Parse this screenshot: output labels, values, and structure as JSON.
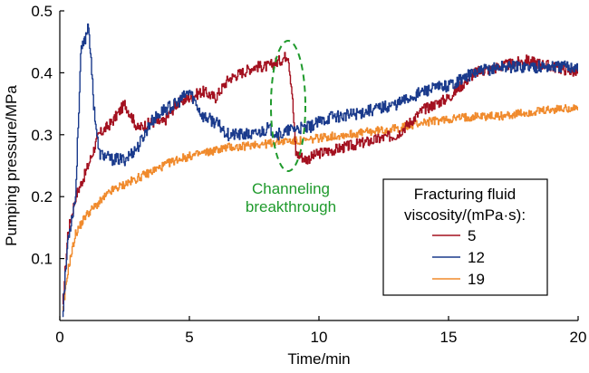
{
  "chart_data": {
    "type": "line",
    "xlabel": "Time/min",
    "ylabel": "Pumping  pressure/MPa",
    "xlim": [
      0,
      20
    ],
    "ylim": [
      0,
      0.5
    ],
    "xticks": [
      0,
      5,
      10,
      15,
      20
    ],
    "yticks": [
      0.1,
      0.2,
      0.3,
      0.4,
      0.5
    ],
    "ytick_labels": [
      "0.1",
      "0.2",
      "0.3",
      "0.4",
      "0.5"
    ],
    "grid": false,
    "legend": {
      "title_line1": "Fracturing fluid",
      "title_line2": "viscosity/(mPa·s):",
      "placement": "lower-right"
    },
    "annotation": {
      "line1": "Channeling",
      "line2": "breakthrough",
      "color": "#1f9a2c"
    },
    "series": [
      {
        "name": "5",
        "color": "#a3101f",
        "x": [
          0.1,
          0.3,
          0.6,
          1.0,
          1.5,
          2.0,
          2.5,
          3.0,
          3.5,
          4.0,
          4.5,
          5.0,
          5.5,
          6.0,
          6.5,
          7.0,
          7.5,
          8.0,
          8.5,
          8.8,
          8.95,
          9.1,
          9.5,
          10.0,
          11.0,
          12.0,
          13.0,
          14.0,
          15.0,
          15.5,
          16.0,
          17.0,
          18.0,
          19.0,
          20.0
        ],
        "y": [
          0.02,
          0.14,
          0.2,
          0.24,
          0.3,
          0.32,
          0.35,
          0.31,
          0.32,
          0.32,
          0.35,
          0.36,
          0.37,
          0.36,
          0.39,
          0.4,
          0.41,
          0.41,
          0.42,
          0.43,
          0.37,
          0.27,
          0.26,
          0.27,
          0.28,
          0.29,
          0.3,
          0.34,
          0.36,
          0.38,
          0.4,
          0.41,
          0.42,
          0.41,
          0.4
        ]
      },
      {
        "name": "12",
        "color": "#1a3a8c",
        "x": [
          0.1,
          0.3,
          0.6,
          0.8,
          1.0,
          1.1,
          1.3,
          1.5,
          2.0,
          2.5,
          3.0,
          3.5,
          4.0,
          4.5,
          5.0,
          5.5,
          6.0,
          6.5,
          7.0,
          7.5,
          8.0,
          8.5,
          9.0,
          9.5,
          10.0,
          10.5,
          11.0,
          12.0,
          13.0,
          14.0,
          15.0,
          16.0,
          17.0,
          18.0,
          19.0,
          20.0
        ],
        "y": [
          0.01,
          0.13,
          0.2,
          0.43,
          0.46,
          0.48,
          0.35,
          0.27,
          0.26,
          0.26,
          0.28,
          0.32,
          0.34,
          0.35,
          0.37,
          0.33,
          0.32,
          0.3,
          0.3,
          0.3,
          0.31,
          0.3,
          0.31,
          0.31,
          0.32,
          0.33,
          0.33,
          0.34,
          0.35,
          0.37,
          0.38,
          0.4,
          0.41,
          0.41,
          0.41,
          0.41
        ]
      },
      {
        "name": "19",
        "color": "#f08a2c",
        "x": [
          0.1,
          0.3,
          0.6,
          1.0,
          1.5,
          2.0,
          2.5,
          3.0,
          3.5,
          4.0,
          4.5,
          5.0,
          5.5,
          6.0,
          6.5,
          7.0,
          7.5,
          8.0,
          8.5,
          9.0,
          9.5,
          10.0,
          11.0,
          12.0,
          13.0,
          14.0,
          15.0,
          16.0,
          17.0,
          18.0,
          19.0,
          20.0
        ],
        "y": [
          0.01,
          0.08,
          0.14,
          0.17,
          0.19,
          0.21,
          0.22,
          0.23,
          0.24,
          0.25,
          0.26,
          0.265,
          0.27,
          0.275,
          0.28,
          0.28,
          0.285,
          0.285,
          0.29,
          0.29,
          0.29,
          0.295,
          0.3,
          0.305,
          0.31,
          0.32,
          0.325,
          0.33,
          0.33,
          0.335,
          0.34,
          0.345
        ]
      }
    ]
  }
}
